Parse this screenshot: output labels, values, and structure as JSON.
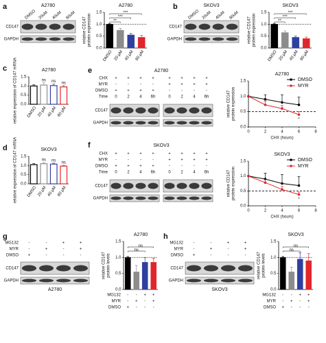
{
  "blots": [
    {
      "panel": "a",
      "title": "A2780",
      "lanes": [
        "DMSO",
        "20uM",
        "40uM",
        "80uM"
      ],
      "rows": [
        "CD147",
        "GAPDH"
      ]
    },
    {
      "panel": "b",
      "title": "SKOV3",
      "lanes": [
        "DMSO",
        "20uM",
        "40uM",
        "80uM"
      ],
      "rows": [
        "CD147",
        "GAPDH"
      ]
    },
    {
      "panel": "e",
      "title": "A2780",
      "treatments": [
        {
          "name": "CHX",
          "values": [
            "+",
            "+",
            "+",
            "+",
            "+",
            "+",
            "+",
            "+"
          ]
        },
        {
          "name": "MYR",
          "values": [
            "-",
            "-",
            "-",
            "-",
            "+",
            "+",
            "+",
            "+"
          ]
        },
        {
          "name": "DMSO",
          "values": [
            "+",
            "+",
            "+",
            "+",
            "-",
            "-",
            "-",
            "-"
          ]
        },
        {
          "name": "Time",
          "values": [
            "0",
            "2",
            "4",
            "6h",
            "0",
            "2",
            "4",
            "6h"
          ]
        }
      ],
      "rows": [
        "CD147",
        "GAPDH"
      ]
    },
    {
      "panel": "f",
      "title": "SKOV3",
      "treatments": [
        {
          "name": "CHX",
          "values": [
            "+",
            "+",
            "+",
            "+",
            "+",
            "+",
            "+",
            "+"
          ]
        },
        {
          "name": "MYR",
          "values": [
            "-",
            "-",
            "-",
            "-",
            "+",
            "+",
            "+",
            "+"
          ]
        },
        {
          "name": "DMSO",
          "values": [
            "+",
            "+",
            "+",
            "+",
            "-",
            "-",
            "-",
            "-"
          ]
        },
        {
          "name": "Time",
          "values": [
            "0",
            "2",
            "4",
            "6h",
            "0",
            "2",
            "4",
            "6h"
          ]
        }
      ],
      "rows": [
        "CD147",
        "GAPDH"
      ]
    },
    {
      "panel": "g",
      "title": "A2780",
      "treatments": [
        {
          "name": "MG132",
          "values": [
            "-",
            "-",
            "+",
            "+"
          ]
        },
        {
          "name": "MYR",
          "values": [
            "-",
            "+",
            "-",
            "+"
          ]
        },
        {
          "name": "DMSO",
          "values": [
            "+",
            "-",
            "-",
            "-"
          ]
        }
      ],
      "rows": [
        "CD147",
        "GAPDH"
      ]
    },
    {
      "panel": "h",
      "title": "SKOV3",
      "treatments": [
        {
          "name": "MG132",
          "values": [
            "-",
            "-",
            "+",
            "+"
          ]
        },
        {
          "name": "MYR",
          "values": [
            "-",
            "+",
            "-",
            "+"
          ]
        },
        {
          "name": "DMSO",
          "values": [
            "+",
            "-",
            "-",
            "-"
          ]
        }
      ],
      "rows": [
        "CD147",
        "GAPDH"
      ]
    }
  ],
  "chart_data": [
    {
      "type": "bar",
      "title": "A2780",
      "ylabel": [
        "relative CD147",
        "protein expression"
      ],
      "categories": [
        "DMSO",
        "20 μM",
        "40 μM",
        "80 μM"
      ],
      "values": [
        1.0,
        0.75,
        0.55,
        0.45
      ],
      "errors": [
        0.03,
        0.08,
        0.06,
        0.08
      ],
      "colors": [
        "#000000",
        "#8c8c8c",
        "#2e3f9e",
        "#e0262b"
      ],
      "bar_style": "solid",
      "ylim": [
        0,
        1.5
      ],
      "yticks": [
        {
          "value": 0,
          "label": "0.0"
        },
        0.5,
        {
          "value": 1,
          "label": "1.0"
        },
        1.5
      ],
      "reference_line": 1,
      "annotations": [
        {
          "text": "**",
          "from": 0,
          "to": 1
        },
        {
          "text": "***",
          "from": 0,
          "to": 2
        },
        {
          "text": "***",
          "from": 0,
          "to": 3
        }
      ]
    },
    {
      "type": "bar",
      "title": "SKOV3",
      "ylabel": [
        "relative CD147",
        "protein expression"
      ],
      "categories": [
        "DMSO",
        "20 μM",
        "40 μM",
        "80 μM"
      ],
      "values": [
        1.0,
        0.65,
        0.45,
        0.4
      ],
      "errors": [
        0.03,
        0.07,
        0.05,
        0.06
      ],
      "colors": [
        "#000000",
        "#8c8c8c",
        "#2e3f9e",
        "#e0262b"
      ],
      "bar_style": "solid",
      "ylim": [
        0,
        1.5
      ],
      "yticks": [
        {
          "value": 0,
          "label": "0.0"
        },
        0.5,
        {
          "value": 1,
          "label": "1.0"
        },
        1.5
      ],
      "reference_line": 1,
      "annotations": [
        {
          "text": "**",
          "from": 0,
          "to": 1
        },
        {
          "text": "***",
          "from": 0,
          "to": 2
        },
        {
          "text": "***",
          "from": 0,
          "to": 3
        }
      ]
    },
    {
      "type": "bar",
      "panel": "c",
      "title": "A2780",
      "ylabel": [
        "relative expression of CD147 mRNA"
      ],
      "categories": [
        "DMSO",
        "20 μM",
        "40 μM",
        "80 μM"
      ],
      "values": [
        1.0,
        1.05,
        1.02,
        0.95
      ],
      "errors": [
        0.06,
        0.12,
        0.08,
        0.07
      ],
      "colors": [
        "#000000",
        "#8c8c8c",
        "#2e3f9e",
        "#e0262b"
      ],
      "bar_style": "outline",
      "ylim": [
        0,
        1.5
      ],
      "yticks": [
        {
          "value": 0,
          "label": "0.0"
        },
        0.5,
        {
          "value": 1,
          "label": "1.0"
        },
        1.5
      ],
      "annotations": [
        {
          "text": "ns",
          "bar": 1
        },
        {
          "text": "ns",
          "bar": 2
        },
        {
          "text": "ns",
          "bar": 3
        }
      ]
    },
    {
      "type": "bar",
      "panel": "d",
      "title": "SKOV3",
      "ylabel": [
        "relative expression of CD147 mRNA"
      ],
      "categories": [
        "DMSO",
        "20 μM",
        "40 μM",
        "80 μM"
      ],
      "values": [
        1.05,
        1.1,
        1.08,
        0.97
      ],
      "errors": [
        0.05,
        0.06,
        0.05,
        0.04
      ],
      "colors": [
        "#000000",
        "#8c8c8c",
        "#2e3f9e",
        "#e0262b"
      ],
      "bar_style": "outline",
      "ylim": [
        0,
        1.5
      ],
      "yticks": [
        {
          "value": 0,
          "label": "0.0"
        },
        0.5,
        {
          "value": 1,
          "label": "1.0"
        },
        1.5
      ],
      "annotations": [
        {
          "text": "ns",
          "bar": 1
        },
        {
          "text": "ns",
          "bar": 2
        },
        {
          "text": "ns",
          "bar": 3
        }
      ]
    },
    {
      "type": "line",
      "title": "A2780",
      "xlabel": "CHX (hours)",
      "ylabel": [
        "relative CD147",
        "protein expression"
      ],
      "x": [
        0,
        2,
        4,
        6
      ],
      "series": [
        {
          "name": "DMSO",
          "color": "#000000",
          "values": [
            1.0,
            0.9,
            0.8,
            0.72
          ],
          "errors": [
            0,
            0.15,
            0.25,
            0.25
          ]
        },
        {
          "name": "MYR",
          "color": "#e0262b",
          "values": [
            1.0,
            0.72,
            0.6,
            0.4
          ],
          "errors": [
            0,
            0.12,
            0.1,
            0.1
          ]
        }
      ],
      "xlim": [
        0,
        8
      ],
      "xticks": [
        0,
        2,
        4,
        6,
        8
      ],
      "ylim": [
        0,
        1.5
      ],
      "yticks": [
        {
          "value": 0,
          "label": "0.0"
        },
        0.5,
        {
          "value": 1,
          "label": "1.0"
        },
        1.5
      ],
      "reference_line": 0.5,
      "legend": "upper right",
      "annotations": [
        {
          "text": "*",
          "series": 1,
          "point": 3
        }
      ]
    },
    {
      "type": "line",
      "title": "SKOV3",
      "xlabel": "CHX (hours)",
      "ylabel": [
        "relative CD147",
        "protein expression"
      ],
      "x": [
        0,
        2,
        4,
        6
      ],
      "series": [
        {
          "name": "DMSO",
          "color": "#000000",
          "values": [
            1.0,
            0.9,
            0.75,
            0.68
          ],
          "errors": [
            0,
            0.2,
            0.3,
            0.3
          ]
        },
        {
          "name": "MYR",
          "color": "#e0262b",
          "values": [
            1.0,
            0.78,
            0.55,
            0.38
          ],
          "errors": [
            0,
            0.1,
            0.1,
            0.08
          ]
        }
      ],
      "xlim": [
        0,
        8
      ],
      "xticks": [
        0,
        2,
        4,
        6,
        8
      ],
      "ylim": [
        0,
        1.5
      ],
      "yticks": [
        {
          "value": 0,
          "label": "0.0"
        },
        0.5,
        {
          "value": 1,
          "label": "1.0"
        },
        1.5
      ],
      "reference_line": 0.5,
      "legend": "upper right",
      "annotations": [
        {
          "text": "*",
          "series": 1,
          "point": 3
        }
      ]
    },
    {
      "type": "bar",
      "title": "A2780",
      "ylabel": [
        "relative CD147",
        "protein levels"
      ],
      "categories": [
        null,
        null,
        null,
        null
      ],
      "values": [
        1.0,
        0.55,
        0.85,
        0.85
      ],
      "errors": [
        0.03,
        0.2,
        0.15,
        0.12
      ],
      "colors": [
        "#000000",
        "#8c8c8c",
        "#2e3f9e",
        "#e0262b"
      ],
      "bar_style": "solid",
      "treatments": [
        {
          "name": "MG132",
          "values": [
            "-",
            "-",
            "+",
            "+"
          ]
        },
        {
          "name": "MYR",
          "values": [
            "-",
            "+",
            "-",
            "+"
          ]
        },
        {
          "name": "DMSO",
          "values": [
            "+",
            "-",
            "-",
            "-"
          ]
        }
      ],
      "ylim": [
        0,
        1.5
      ],
      "yticks": [
        {
          "value": 0,
          "label": "0.0"
        },
        0.5,
        {
          "value": 1,
          "label": "1.0"
        },
        1.5
      ],
      "reference_line": 1,
      "annotations": [
        {
          "text": "ns",
          "from": 0,
          "to": 2
        },
        {
          "text": "ns",
          "from": 0,
          "to": 3
        }
      ]
    },
    {
      "type": "bar",
      "title": "SKOV3",
      "ylabel": [
        "relative CD147",
        "protein levels"
      ],
      "categories": [
        null,
        null,
        null,
        null
      ],
      "values": [
        1.0,
        0.55,
        0.95,
        0.9
      ],
      "errors": [
        0.03,
        0.15,
        0.2,
        0.22
      ],
      "colors": [
        "#000000",
        "#8c8c8c",
        "#2e3f9e",
        "#e0262b"
      ],
      "bar_style": "solid",
      "treatments": [
        {
          "name": "MG132",
          "values": [
            "-",
            "-",
            "+",
            "+"
          ]
        },
        {
          "name": "MYR",
          "values": [
            "-",
            "+",
            "-",
            "+"
          ]
        },
        {
          "name": "DMSO",
          "values": [
            "+",
            "-",
            "-",
            "-"
          ]
        }
      ],
      "ylim": [
        0,
        1.5
      ],
      "yticks": [
        {
          "value": 0,
          "label": "0.0"
        },
        0.5,
        {
          "value": 1,
          "label": "1.0"
        },
        1.5
      ],
      "reference_line": 1,
      "annotations": [
        {
          "text": "ns",
          "from": 0,
          "to": 2
        },
        {
          "text": "ns",
          "from": 0,
          "to": 3
        }
      ]
    }
  ]
}
